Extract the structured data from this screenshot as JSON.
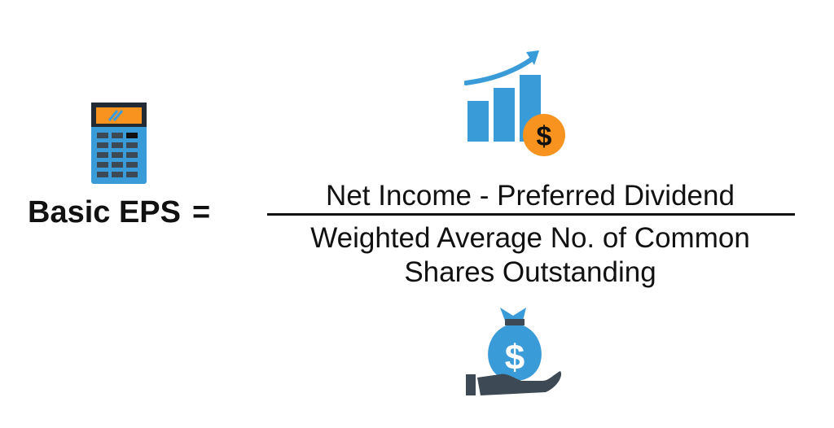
{
  "formula": {
    "lhs": "Basic EPS",
    "equals": "=",
    "numerator": "Net Income - Preferred Dividend",
    "denominator_line1": "Weighted Average No. of Common",
    "denominator_line2": "Shares Outstanding"
  },
  "icons": {
    "calculator": "calculator-icon",
    "growth_chart": "growth-chart-icon",
    "dollar_coin": "dollar-coin-icon",
    "money_bag": "money-bag-icon",
    "hand": "hand-icon",
    "dollar_sign": "$"
  },
  "colors": {
    "blue": "#3A9BD9",
    "orange": "#F7931E",
    "dark": "#3D4A56",
    "text": "#111111"
  }
}
